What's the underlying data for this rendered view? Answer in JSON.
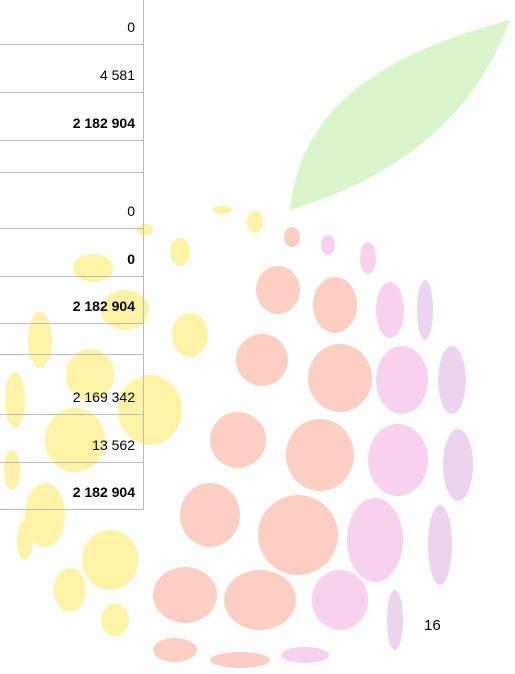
{
  "table": {
    "rows": [
      {
        "value": "0",
        "bold": false
      },
      {
        "value": "4 581",
        "bold": false
      },
      {
        "value": "2 182 904",
        "bold": true
      },
      {
        "value": null,
        "bold": false
      },
      {
        "value": "0",
        "bold": false
      },
      {
        "value": "0",
        "bold": true
      },
      {
        "value": "2 182 904",
        "bold": true
      },
      {
        "value": null,
        "bold": false
      },
      {
        "value": "2 169 342",
        "bold": false
      },
      {
        "value": "13 562",
        "bold": false
      },
      {
        "value": "2 182 904",
        "bold": true
      }
    ]
  },
  "footer": {
    "page_number": "16"
  }
}
